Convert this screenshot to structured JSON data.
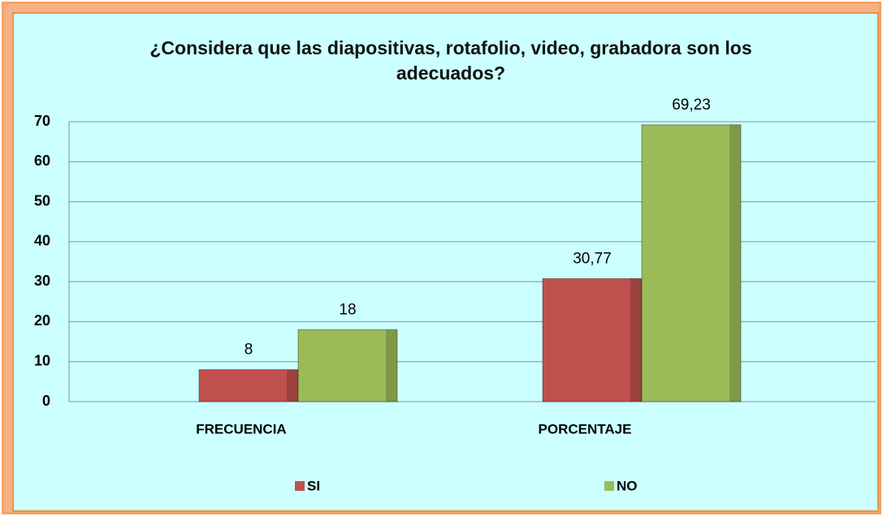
{
  "chart_data": {
    "type": "bar",
    "title": "¿Considera que las diapositivas, rotafolio, video, grabadora son los adecuados?",
    "categories": [
      "FRECUENCIA",
      "PORCENTAJE"
    ],
    "series": [
      {
        "name": "SI",
        "color": "#c0504d",
        "values": [
          8,
          30.77
        ],
        "value_labels": [
          "8",
          "30,77"
        ]
      },
      {
        "name": "NO",
        "color": "#9bbb59",
        "values": [
          18,
          69.23
        ],
        "value_labels": [
          "18",
          "69,23"
        ]
      }
    ],
    "ylim": [
      0,
      70
    ],
    "yticks": [
      0,
      10,
      20,
      30,
      40,
      50,
      60,
      70
    ],
    "grid": true,
    "legend": "bottom"
  }
}
